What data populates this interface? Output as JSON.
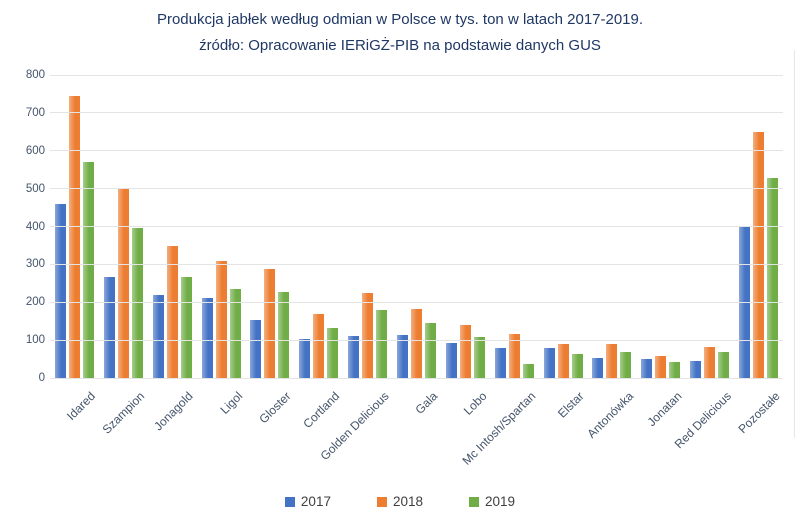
{
  "title": {
    "line1": "Produkcja jabłek według odmian w Polsce w tys. ton w latach 2017-2019.",
    "line2": "źródło: Opracowanie IERiGŻ-PIB na podstawie danych GUS"
  },
  "colors": {
    "series_2017": "#4472C4",
    "series_2018": "#ED7D31",
    "series_2019": "#70AD47",
    "title_text": "#1F3864",
    "axis_text": "#44546A",
    "gridline": "#E4E4E4",
    "background": "#FFFFFF"
  },
  "chart_data": {
    "type": "bar",
    "title": "Produkcja jabłek według odmian w Polsce w tys. ton w latach 2017-2019.",
    "subtitle": "źródło: Opracowanie IERiGŻ-PIB na podstawie danych GUS",
    "categories": [
      "Idared",
      "Szampion",
      "Jonagold",
      "Ligol",
      "Gloster",
      "Cortland",
      "Golden Delicious",
      "Gala",
      "Lobo",
      "Mc Intosh/Spartan",
      "Elstar",
      "Antonówka",
      "Jonatan",
      "Red Delicious",
      "Pozostałe"
    ],
    "series": [
      {
        "name": "2017",
        "color": "#4472C4",
        "values": [
          460,
          268,
          218,
          210,
          152,
          103,
          110,
          114,
          92,
          79,
          78,
          53,
          49,
          44,
          398
        ]
      },
      {
        "name": "2018",
        "color": "#ED7D31",
        "values": [
          745,
          500,
          348,
          308,
          288,
          170,
          225,
          182,
          140,
          117,
          90,
          89,
          58,
          83,
          650
        ]
      },
      {
        "name": "2019",
        "color": "#70AD47",
        "values": [
          570,
          395,
          266,
          234,
          226,
          133,
          179,
          144,
          109,
          38,
          64,
          68,
          42,
          68,
          528
        ]
      }
    ],
    "xlabel": "",
    "ylabel": "",
    "ylim": [
      0,
      800
    ],
    "y_tick_step": 100,
    "y_tick_labels": [
      "0",
      "100",
      "200",
      "300",
      "400",
      "500",
      "600",
      "700",
      "800"
    ],
    "grid": true,
    "legend_position": "bottom"
  }
}
